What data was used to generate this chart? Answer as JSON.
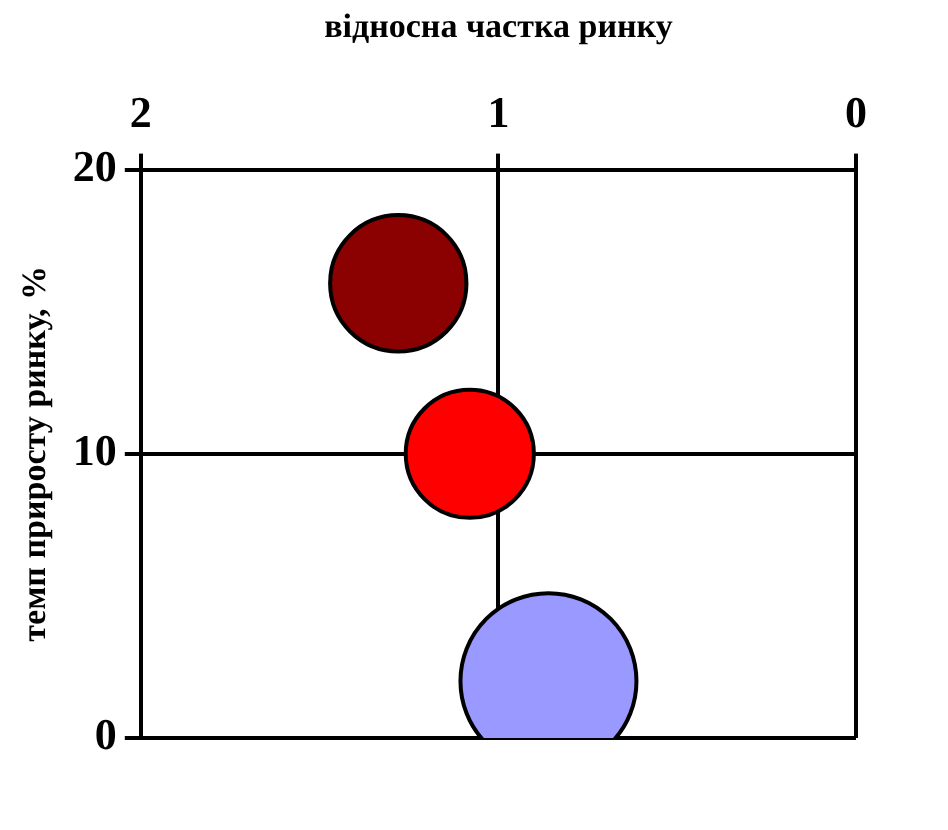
{
  "chart_data": {
    "type": "bubble",
    "xlabel": "відносна частка ринку",
    "ylabel": "темп приросту ринку, %",
    "x": [
      1.28,
      1.08,
      0.86
    ],
    "values": [
      16,
      10,
      2
    ],
    "sizes": [
      0.6,
      0.53,
      1
    ],
    "colors": [
      "#8b0000",
      "#ff0000",
      "#9999ff"
    ],
    "xlim": [
      2,
      0
    ],
    "xticks": [
      2,
      1,
      0
    ],
    "ylim": [
      0,
      20
    ],
    "yticks": [
      0,
      10,
      20
    ],
    "grid": true
  }
}
